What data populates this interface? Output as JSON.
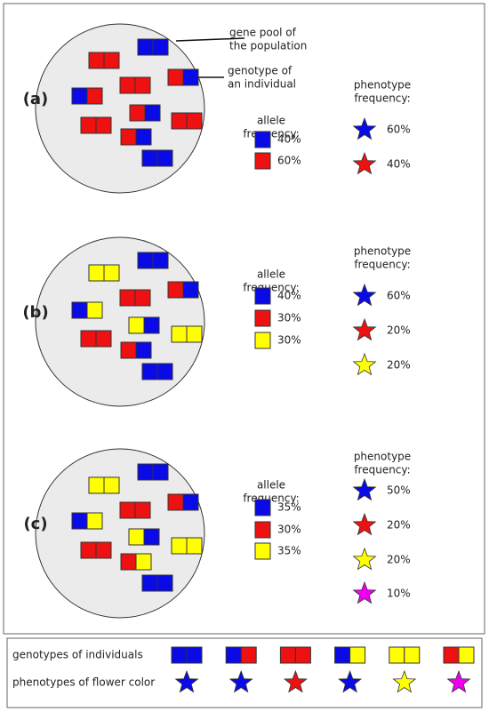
{
  "annotations": {
    "gene_pool": [
      "gene pool of",
      "the population"
    ],
    "genotype": [
      "genotype of",
      "an individual"
    ]
  },
  "panels": [
    {
      "label": "(a)",
      "allele_title": [
        "allele",
        "frequency:"
      ],
      "alleles": [
        {
          "color": "blue",
          "freq": "40%"
        },
        {
          "color": "red",
          "freq": "60%"
        }
      ],
      "phenotype_title": [
        "phenotype",
        "frequency:"
      ],
      "phenotypes": [
        {
          "color": "blue",
          "freq": "60%"
        },
        {
          "color": "red",
          "freq": "40%"
        }
      ]
    },
    {
      "label": "(b)",
      "allele_title": [
        "allele",
        "frequency:"
      ],
      "alleles": [
        {
          "color": "blue",
          "freq": "40%"
        },
        {
          "color": "red",
          "freq": "30%"
        },
        {
          "color": "yellow",
          "freq": "30%"
        }
      ],
      "phenotype_title": [
        "phenotype",
        "frequency:"
      ],
      "phenotypes": [
        {
          "color": "blue",
          "freq": "60%"
        },
        {
          "color": "red",
          "freq": "20%"
        },
        {
          "color": "yellow",
          "freq": "20%"
        }
      ]
    },
    {
      "label": "(c)",
      "allele_title": [
        "allele",
        "frequency:"
      ],
      "alleles": [
        {
          "color": "blue",
          "freq": "35%"
        },
        {
          "color": "red",
          "freq": "30%"
        },
        {
          "color": "yellow",
          "freq": "35%"
        }
      ],
      "phenotype_title": [
        "phenotype",
        "frequency:"
      ],
      "phenotypes": [
        {
          "color": "blue",
          "freq": "50%"
        },
        {
          "color": "red",
          "freq": "20%"
        },
        {
          "color": "yellow",
          "freq": "20%"
        },
        {
          "color": "magenta",
          "freq": "10%"
        }
      ]
    }
  ],
  "legend": {
    "genotypes_label": "genotypes of individuals",
    "phenotypes_label": "phenotypes of flower color"
  }
}
